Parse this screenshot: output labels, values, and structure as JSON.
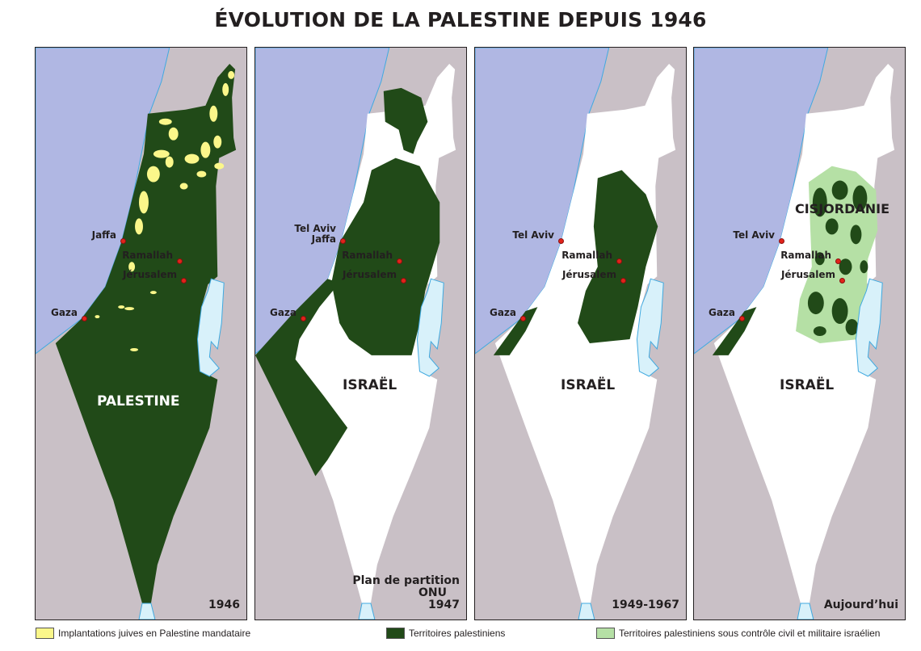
{
  "title": "ÉVOLUTION DE LA PALESTINE DEPUIS 1946",
  "colors": {
    "sea": "#b0b7e3",
    "neighbors": "#c9c0c6",
    "palestinian": "#214a18",
    "settlements": "#fbf78a",
    "occupied": "#b5e0a5",
    "israel": "#ffffff",
    "lakes": "#d8f1fa",
    "city_dot": "#e2231a"
  },
  "panels": [
    {
      "label": "PALESTINE",
      "year": "1946",
      "cities": [
        "Jaffa",
        "Ramallah",
        "Jérusalem",
        "Gaza"
      ]
    },
    {
      "label": "ISRAËL",
      "year_lines": [
        "Plan de partition",
        "ONU",
        "1947"
      ],
      "cities": [
        "Tel Aviv",
        "Jaffa",
        "Ramallah",
        "Jérusalem",
        "Gaza"
      ]
    },
    {
      "label": "ISRAËL",
      "year": "1949-1967",
      "cities": [
        "Tel Aviv",
        "Ramallah",
        "Jérusalem",
        "Gaza"
      ]
    },
    {
      "label": "ISRAËL",
      "region": "CISJORDANIE",
      "year": "Aujourd’hui",
      "cities": [
        "Tel Aviv",
        "Ramallah",
        "Jérusalem",
        "Gaza"
      ]
    }
  ],
  "legend": [
    {
      "label": "Implantations juives en Palestine mandataire",
      "color": "#fbf78a"
    },
    {
      "label": "Territoires palestiniens",
      "color": "#214a18"
    },
    {
      "label": "Territoires palestiniens sous contrôle civil et militaire israélien",
      "color": "#b5e0a5"
    }
  ]
}
